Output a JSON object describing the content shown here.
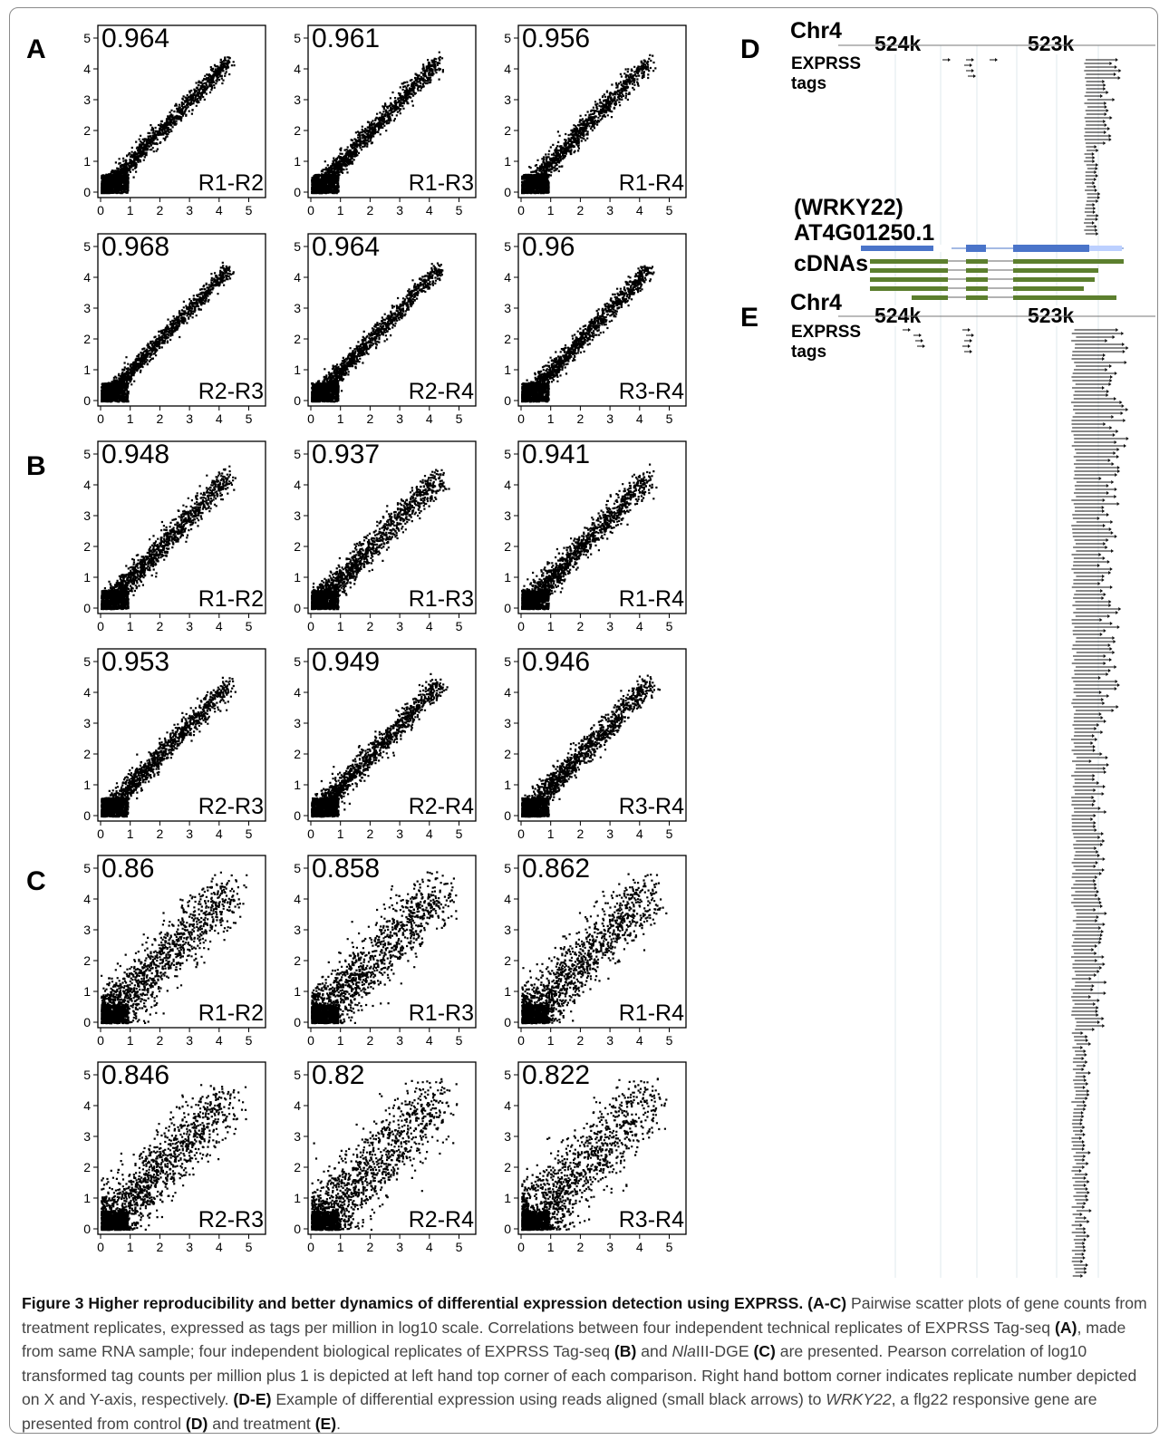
{
  "panels": {
    "a": "A",
    "b": "B",
    "c": "C",
    "d": "D",
    "e": "E"
  },
  "scatter_labels": {
    "a": [
      {
        "corr": "0.964",
        "pair": "R1-R2"
      },
      {
        "corr": "0.961",
        "pair": "R1-R3"
      },
      {
        "corr": "0.956",
        "pair": "R1-R4"
      },
      {
        "corr": "0.968",
        "pair": "R2-R3"
      },
      {
        "corr": "0.964",
        "pair": "R2-R4"
      },
      {
        "corr": "0.96",
        "pair": "R3-R4"
      }
    ],
    "b": [
      {
        "corr": "0.948",
        "pair": "R1-R2"
      },
      {
        "corr": "0.937",
        "pair": "R1-R3"
      },
      {
        "corr": "0.941",
        "pair": "R1-R4"
      },
      {
        "corr": "0.953",
        "pair": "R2-R3"
      },
      {
        "corr": "0.949",
        "pair": "R2-R4"
      },
      {
        "corr": "0.946",
        "pair": "R3-R4"
      }
    ],
    "c": [
      {
        "corr": "0.86",
        "pair": "R1-R2"
      },
      {
        "corr": "0.858",
        "pair": "R1-R3"
      },
      {
        "corr": "0.862",
        "pair": "R1-R4"
      },
      {
        "corr": "0.846",
        "pair": "R2-R3"
      },
      {
        "corr": "0.82",
        "pair": "R2-R4"
      },
      {
        "corr": "0.822",
        "pair": "R3-R4"
      }
    ]
  },
  "chart_data": {
    "type": "scatter",
    "x_ticks": [
      "0",
      "1",
      "2",
      "3",
      "4",
      "5"
    ],
    "y_ticks": [
      "0",
      "1",
      "2",
      "3",
      "4",
      "5"
    ],
    "xlim": [
      0,
      5
    ],
    "ylim": [
      0,
      5
    ]
  },
  "genome_browser": {
    "chr": "Chr4",
    "coord_1": "524k",
    "coord_2": "523k",
    "track_line1": "EXPRSS",
    "track_line2": "tags",
    "gene_name": "(WRKY22)",
    "gene_id": "AT4G01250.1",
    "cdnas": "cDNAs",
    "exon_color": "#4a74c9",
    "cdna_color": "#5c7f2e"
  },
  "caption": {
    "title": "Figure 3 Higher reproducibility and better dynamics of differential expression detection using EXPRSS.",
    "p1_ref": "(A-C)",
    "p1": " Pairwise scatter plots of gene counts from treatment replicates, expressed as tags per million in log10 scale. Correlations between four independent technical replicates of EXPRSS Tag-seq ",
    "ref_a": "(A)",
    "p2": ", made from same RNA sample; four independent biological replicates of EXPRSS Tag-seq ",
    "ref_b": "(B)",
    "p3": " and ",
    "nla": "Nla",
    "p3b": "III-DGE ",
    "ref_c": "(C)",
    "p4": " are presented. Pearson correlation of log10 transformed tag counts per million plus 1 is depicted at left hand top corner of each comparison. Right hand bottom corner indicates replicate number depicted on X and Y-axis, respectively. ",
    "ref_de": "(D-E)",
    "p5": " Example of differential expression using reads aligned (small black arrows) to ",
    "wrky": "WRKY22",
    "p6": ", a flg22 responsive gene are presented from control ",
    "ref_d": "(D)",
    "p7": " and treatment ",
    "ref_e": "(E)",
    "p8": "."
  }
}
